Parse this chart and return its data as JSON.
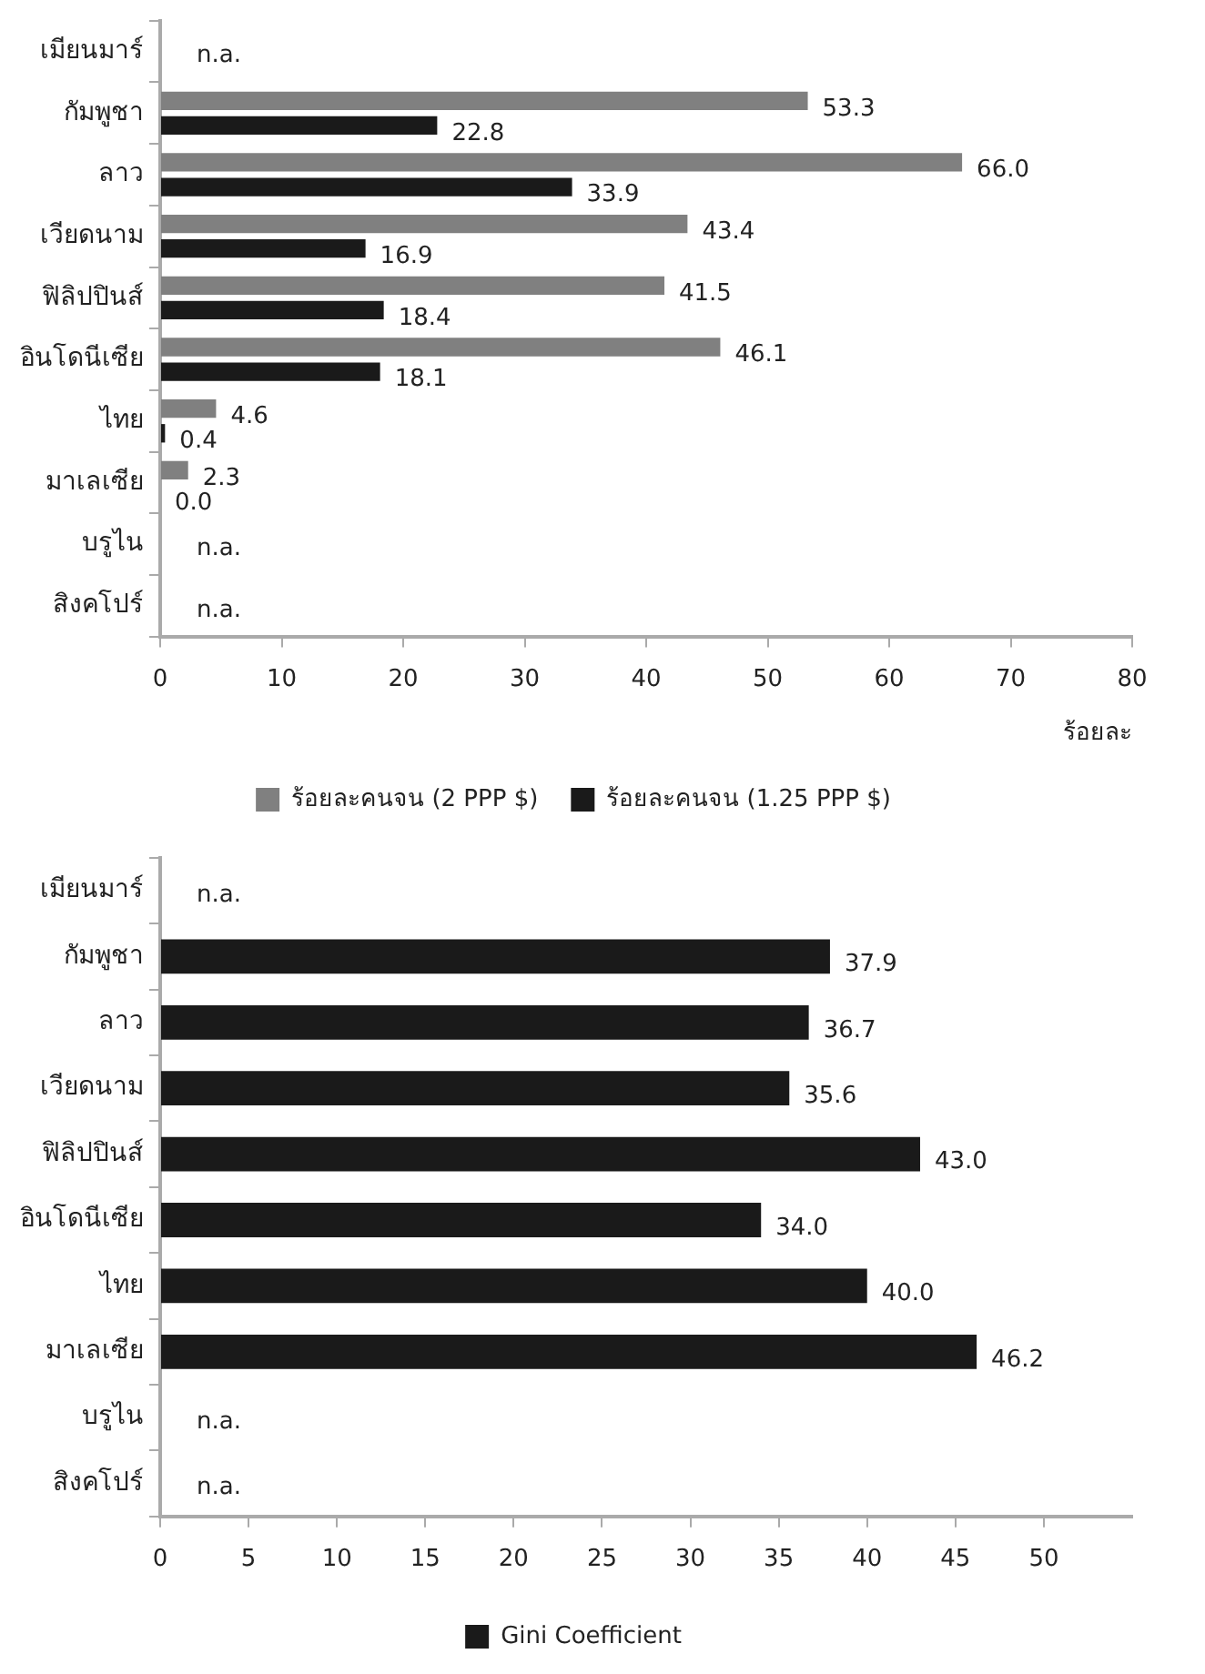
{
  "chart_data": [
    {
      "type": "bar",
      "orientation": "horizontal",
      "xlabel": "ร้อยละ",
      "legend": "bottom",
      "grid": false,
      "categories": [
        "เมียนมาร์",
        "กัมพูชา",
        "ลาว",
        "เวียดนาม",
        "ฟิลิปปินส์",
        "อินโดนีเซีย",
        "ไทย",
        "มาเลเซีย",
        "บรูไน",
        "สิงคโปร์"
      ],
      "xlim": [
        0,
        80
      ],
      "xticks": [
        0,
        10,
        20,
        30,
        40,
        50,
        60,
        70,
        80
      ],
      "series": [
        {
          "name": "ร้อยละคนจน (2 PPP $)",
          "color": "#808080",
          "values": [
            null,
            53.3,
            66.0,
            43.4,
            41.5,
            46.1,
            4.6,
            2.3,
            null,
            null
          ],
          "value_labels": [
            "n.a.",
            "53.3",
            "66.0",
            "43.4",
            "41.5",
            "46.1",
            "4.6",
            "2.3",
            "n.a.",
            "n.a."
          ]
        },
        {
          "name": "ร้อยละคนจน (1.25 PPP $)",
          "color": "#1a1a1a",
          "values": [
            null,
            22.8,
            33.9,
            16.9,
            18.4,
            18.1,
            0.4,
            0.0,
            null,
            null
          ],
          "value_labels": [
            null,
            "22.8",
            "33.9",
            "16.9",
            "18.4",
            "18.1",
            "0.4",
            "0.0",
            null,
            null
          ]
        }
      ]
    },
    {
      "type": "bar",
      "orientation": "horizontal",
      "legend": "bottom",
      "grid": false,
      "categories": [
        "เมียนมาร์",
        "กัมพูชา",
        "ลาว",
        "เวียดนาม",
        "ฟิลิปปินส์",
        "อินโดนีเซีย",
        "ไทย",
        "มาเลเซีย",
        "บรูไน",
        "สิงคโปร์"
      ],
      "xlim": [
        0,
        55
      ],
      "xticks": [
        0,
        5,
        10,
        15,
        20,
        25,
        30,
        35,
        40,
        45,
        50
      ],
      "series": [
        {
          "name": "Gini Coefficient",
          "color": "#1a1a1a",
          "values": [
            null,
            37.9,
            36.7,
            35.6,
            43.0,
            34.0,
            40.0,
            46.2,
            null,
            null
          ],
          "value_labels": [
            "n.a.",
            "37.9",
            "36.7",
            "35.6",
            "43.0",
            "34.0",
            "40.0",
            "46.2",
            "n.a.",
            "n.a."
          ]
        }
      ]
    }
  ]
}
